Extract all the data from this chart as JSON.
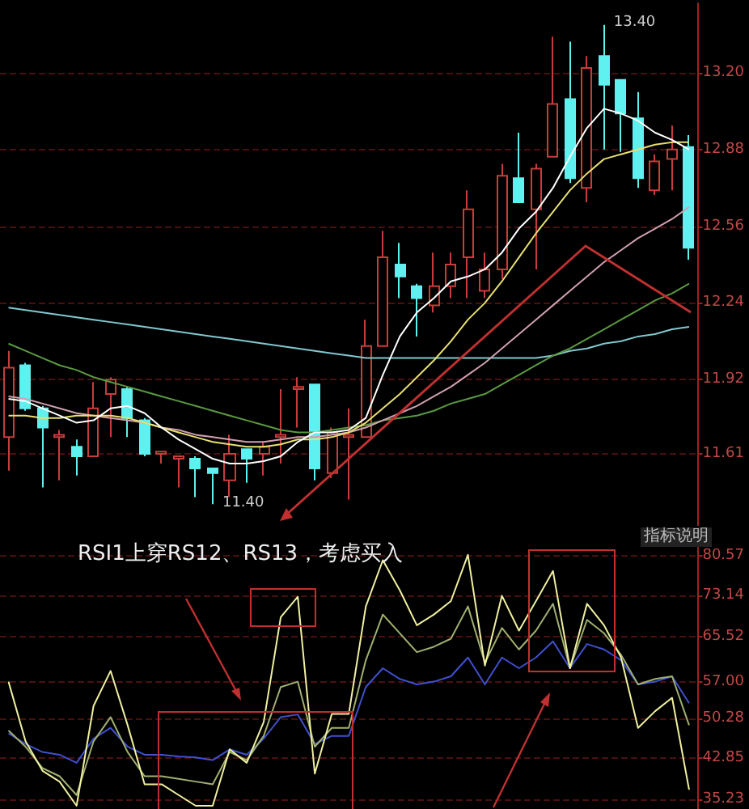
{
  "chart_data": [
    {
      "type": "candlestick",
      "categories": [
        null,
        null,
        null,
        null,
        null,
        null,
        null,
        null,
        null,
        null,
        null,
        null,
        null,
        null,
        null,
        null,
        null,
        null,
        null,
        null,
        null,
        null,
        null,
        null,
        null,
        null,
        null,
        null,
        null,
        null,
        null,
        null,
        null,
        null,
        null,
        null,
        null,
        null,
        null,
        null,
        null
      ],
      "ylim": [
        11.31,
        13.49
      ],
      "yticks": [
        {
          "value": 11.61,
          "label": "11.61"
        },
        {
          "value": 11.92,
          "label": "11.92"
        },
        {
          "value": 12.24,
          "label": "12.24"
        },
        {
          "value": 12.56,
          "label": "12.56"
        },
        {
          "value": 12.88,
          "label": "12.88"
        },
        {
          "value": 13.2,
          "label": "13.20"
        }
      ],
      "grid": "y",
      "tick_labels": "y",
      "marker": "none",
      "line_style": "solid",
      "annotations": [
        "13.40",
        "11.40"
      ],
      "series": [
        {
          "ohlc": [
            [
              11.68,
              12.04,
              11.54,
              11.97
            ],
            [
              11.98,
              11.99,
              11.79,
              11.8
            ],
            [
              11.8,
              11.81,
              11.47,
              11.72
            ],
            [
              11.68,
              11.71,
              11.5,
              11.69
            ],
            [
              11.64,
              11.67,
              11.52,
              11.6
            ],
            [
              11.6,
              11.91,
              11.6,
              11.8
            ],
            [
              11.86,
              11.93,
              11.68,
              11.92
            ],
            [
              11.88,
              11.89,
              11.68,
              11.76
            ],
            [
              11.75,
              11.76,
              11.6,
              11.61
            ],
            [
              11.61,
              11.62,
              11.57,
              11.62
            ],
            [
              11.59,
              11.6,
              11.47,
              11.6
            ],
            [
              11.59,
              11.6,
              11.43,
              11.55
            ],
            [
              11.55,
              11.55,
              11.4,
              11.53
            ],
            [
              11.5,
              11.69,
              11.43,
              11.61
            ],
            [
              11.63,
              11.63,
              11.49,
              11.59
            ],
            [
              11.61,
              11.66,
              11.52,
              11.64
            ],
            [
              11.68,
              11.88,
              11.57,
              11.69
            ],
            [
              11.88,
              11.93,
              11.72,
              11.89
            ],
            [
              11.9,
              11.9,
              11.5,
              11.55
            ],
            [
              11.53,
              11.72,
              11.51,
              11.7
            ],
            [
              11.68,
              11.8,
              11.42,
              11.69
            ],
            [
              11.68,
              12.17,
              11.68,
              12.06
            ],
            [
              12.06,
              12.54,
              12.06,
              12.43
            ],
            [
              12.4,
              12.49,
              12.26,
              12.35
            ],
            [
              12.31,
              12.32,
              12.1,
              12.26
            ],
            [
              12.23,
              12.45,
              12.2,
              12.31
            ],
            [
              12.31,
              12.45,
              12.26,
              12.4
            ],
            [
              12.43,
              12.71,
              12.26,
              12.63
            ],
            [
              12.29,
              12.45,
              12.26,
              12.38
            ],
            [
              12.38,
              12.82,
              12.34,
              12.77
            ],
            [
              12.76,
              12.95,
              12.66,
              12.66
            ],
            [
              12.63,
              12.82,
              12.38,
              12.8
            ],
            [
              12.85,
              13.35,
              12.85,
              13.07
            ],
            [
              13.09,
              13.33,
              12.74,
              12.76
            ],
            [
              12.72,
              13.27,
              12.66,
              13.22
            ],
            [
              13.27,
              13.4,
              12.88,
              13.15
            ],
            [
              13.17,
              13.17,
              12.87,
              13.03
            ],
            [
              13.01,
              13.12,
              12.72,
              12.76
            ],
            [
              12.71,
              12.86,
              12.69,
              12.83
            ],
            [
              12.84,
              12.98,
              12.71,
              12.88
            ],
            [
              12.89,
              12.94,
              12.42,
              12.47
            ]
          ],
          "colors": [
            "#c83c3c",
            "#5ff0f0",
            "#5ff0f0",
            "#c83c3c",
            "#5ff0f0",
            "#c83c3c",
            "#c83c3c",
            "#5ff0f0",
            "#5ff0f0",
            "#c83c3c",
            "#c83c3c",
            "#5ff0f0",
            "#5ff0f0",
            "#c83c3c",
            "#5ff0f0",
            "#c83c3c",
            "#c83c3c",
            "#c83c3c",
            "#5ff0f0",
            "#c83c3c",
            "#c83c3c",
            "#c83c3c",
            "#c83c3c",
            "#5ff0f0",
            "#5ff0f0",
            "#c83c3c",
            "#c83c3c",
            "#c83c3c",
            "#c83c3c",
            "#c83c3c",
            "#5ff0f0",
            "#c83c3c",
            "#c83c3c",
            "#5ff0f0",
            "#c83c3c",
            "#5ff0f0",
            "#5ff0f0",
            "#5ff0f0",
            "#c83c3c",
            "#c83c3c",
            "#5ff0f0"
          ]
        },
        {
          "type": "line",
          "color": "#80c8d0",
          "values": [
            12.22,
            12.21,
            12.2,
            12.19,
            12.18,
            12.17,
            12.16,
            12.15,
            12.14,
            12.13,
            12.12,
            12.11,
            12.1,
            12.09,
            12.08,
            12.07,
            12.06,
            12.05,
            12.04,
            12.03,
            12.02,
            12.01,
            12.01,
            12.01,
            12.01,
            12.01,
            12.01,
            12.01,
            12.01,
            12.01,
            12.01,
            12.01,
            12.02,
            12.04,
            12.05,
            12.07,
            12.08,
            12.1,
            12.11,
            12.13,
            12.14
          ]
        },
        {
          "type": "line",
          "color": "#5a9a40",
          "values": [
            12.07,
            12.04,
            12.01,
            11.98,
            11.96,
            11.93,
            11.91,
            11.89,
            11.87,
            11.85,
            11.83,
            11.81,
            11.79,
            11.77,
            11.75,
            11.73,
            11.71,
            11.7,
            11.7,
            11.71,
            11.72,
            11.73,
            11.75,
            11.76,
            11.77,
            11.79,
            11.82,
            11.84,
            11.86,
            11.9,
            11.94,
            11.98,
            12.02,
            12.05,
            12.09,
            12.13,
            12.17,
            12.21,
            12.25,
            12.28,
            12.32
          ]
        },
        {
          "type": "line",
          "color": "#d0a0b0",
          "values": [
            11.85,
            11.84,
            11.82,
            11.8,
            11.78,
            11.77,
            11.76,
            11.75,
            11.74,
            11.72,
            11.71,
            11.69,
            11.68,
            11.67,
            11.66,
            11.66,
            11.67,
            11.68,
            11.68,
            11.69,
            11.7,
            11.72,
            11.75,
            11.78,
            11.81,
            11.85,
            11.89,
            11.94,
            11.99,
            12.05,
            12.11,
            12.17,
            12.23,
            12.29,
            12.35,
            12.41,
            12.46,
            12.51,
            12.55,
            12.59,
            12.64
          ]
        },
        {
          "type": "line",
          "color": "#e8e070",
          "values": [
            11.77,
            11.77,
            11.76,
            11.76,
            11.77,
            11.77,
            11.77,
            11.76,
            11.74,
            11.72,
            11.7,
            11.68,
            11.66,
            11.65,
            11.64,
            11.64,
            11.65,
            11.67,
            11.67,
            11.68,
            11.7,
            11.74,
            11.8,
            11.86,
            11.93,
            12.0,
            12.08,
            12.17,
            12.24,
            12.33,
            12.43,
            12.53,
            12.62,
            12.71,
            12.78,
            12.84,
            12.86,
            12.88,
            12.9,
            12.91,
            12.91
          ]
        },
        {
          "type": "line",
          "color": "#ffffff",
          "values": [
            11.84,
            11.83,
            11.8,
            11.77,
            11.74,
            11.75,
            11.8,
            11.81,
            11.78,
            11.72,
            11.67,
            11.63,
            11.59,
            11.57,
            11.57,
            11.58,
            11.6,
            11.66,
            11.7,
            11.7,
            11.71,
            11.76,
            11.94,
            12.1,
            12.2,
            12.26,
            12.33,
            12.35,
            12.38,
            12.45,
            12.55,
            12.62,
            12.72,
            12.85,
            12.97,
            13.05,
            13.03,
            13.0,
            12.95,
            12.92,
            12.88
          ]
        }
      ]
    },
    {
      "type": "line",
      "categories": [
        null,
        null,
        null,
        null,
        null,
        null,
        null,
        null,
        null,
        null,
        null,
        null,
        null,
        null,
        null,
        null,
        null,
        null,
        null,
        null,
        null,
        null,
        null,
        null,
        null,
        null,
        null,
        null,
        null,
        null,
        null,
        null,
        null,
        null,
        null,
        null,
        null,
        null,
        null,
        null,
        null
      ],
      "ylim": [
        33.4,
        85.5
      ],
      "yticks": [
        {
          "value": 35.23,
          "label": "35.23"
        },
        {
          "value": 42.85,
          "label": "42.85"
        },
        {
          "value": 50.28,
          "label": "50.28"
        },
        {
          "value": 57,
          "label": "57.00"
        },
        {
          "value": 65.52,
          "label": "65.52"
        },
        {
          "value": 73.14,
          "label": "73.14"
        },
        {
          "value": 80.57,
          "label": "80.57"
        }
      ],
      "grid": "y",
      "tick_labels": "y",
      "marker": "none",
      "line_style": "solid",
      "annotations": [
        "RSI1上穿RS12、RS13，考虑买入",
        "指标说明"
      ],
      "series": [
        {
          "color": "#4050d0",
          "values": [
            47.5,
            45.5,
            44.0,
            43.5,
            42.0,
            46.5,
            48.5,
            45.0,
            43.5,
            43.5,
            43.2,
            43.0,
            42.5,
            44.5,
            43.5,
            46.5,
            50.5,
            51.0,
            45.5,
            47.0,
            47.0,
            56.1,
            59.6,
            57.6,
            56.6,
            57.1,
            58.1,
            61.6,
            56.6,
            61.6,
            59.6,
            61.6,
            64.6,
            59.6,
            64.1,
            63.1,
            61.1,
            56.6,
            57.1,
            58.1,
            53.1
          ]
        },
        {
          "color": "#a0b070",
          "values": [
            48.0,
            45.0,
            41.0,
            39.5,
            36.0,
            46.0,
            50.5,
            44.0,
            39.5,
            39.5,
            39.0,
            38.5,
            38.0,
            44.0,
            42.5,
            47.0,
            56.1,
            57.1,
            45.0,
            48.5,
            48.5,
            61.1,
            69.6,
            66.1,
            62.6,
            63.6,
            65.1,
            71.1,
            60.6,
            67.1,
            63.1,
            66.6,
            71.6,
            59.6,
            68.6,
            66.1,
            62.1,
            56.6,
            57.6,
            58.1,
            49.0
          ]
        },
        {
          "color": "#f0f0a0",
          "values": [
            57.1,
            46.0,
            40.5,
            38.5,
            34.0,
            52.6,
            59.1,
            49.0,
            38.0,
            38.0,
            36.0,
            34.0,
            34.0,
            44.5,
            42.0,
            49.6,
            69.1,
            72.9,
            40.0,
            51.1,
            51.1,
            71.1,
            79.7,
            74.1,
            67.6,
            69.6,
            72.1,
            80.7,
            60.1,
            73.1,
            66.6,
            72.1,
            77.7,
            59.6,
            71.6,
            67.6,
            61.6,
            48.5,
            51.6,
            54.1,
            37.0
          ]
        }
      ]
    }
  ]
}
